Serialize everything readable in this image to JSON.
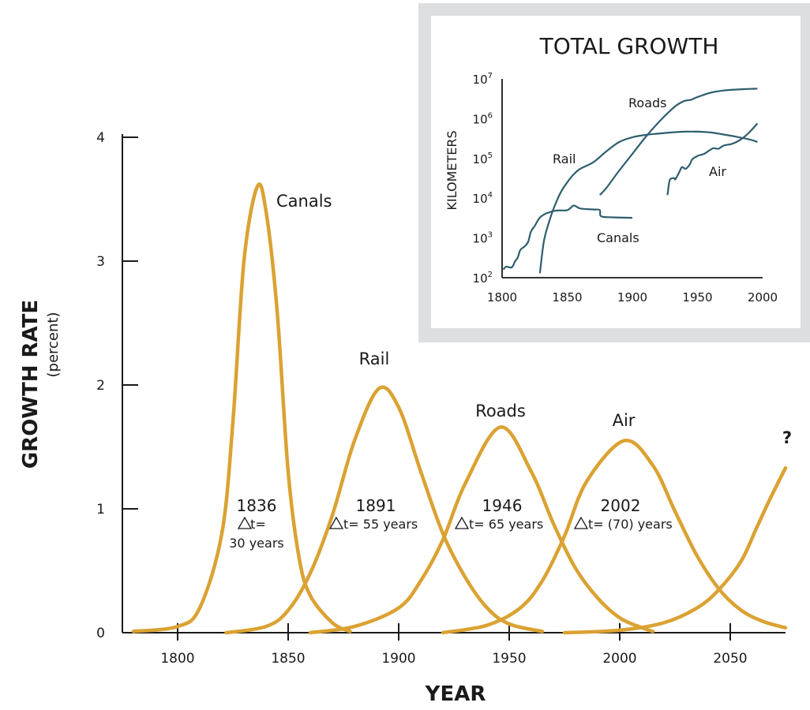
{
  "colors": {
    "curve": "#DBA232",
    "inset_line": "#2F5E6E",
    "inset_frame": "#DDDEE0",
    "axis": "#1a1a1a"
  },
  "chart_data": [
    {
      "type": "line",
      "xlabel": "YEAR",
      "ylabel": "GROWTH RATE",
      "ylabel_sub": "(percent)",
      "xlim": [
        1775,
        2075
      ],
      "ylim": [
        0,
        4
      ],
      "x_ticks": [
        "1800",
        "1850",
        "1900",
        "1950",
        "2000",
        "2050"
      ],
      "y_ticks": [
        "0",
        "1",
        "2",
        "3",
        "4"
      ],
      "grid": false,
      "series": [
        {
          "name": "Canals",
          "peak_year": "1836",
          "peak_value": 3.6,
          "delta_prefix": "t=",
          "delta_years": "30 years",
          "x": [
            1780,
            1800,
            1810,
            1820,
            1825,
            1830,
            1836,
            1840,
            1845,
            1850,
            1855,
            1860,
            1870,
            1878
          ],
          "y": [
            0.01,
            0.05,
            0.2,
            0.8,
            1.7,
            3.0,
            3.6,
            3.4,
            2.6,
            1.3,
            0.6,
            0.3,
            0.08,
            0.01
          ]
        },
        {
          "name": "Rail",
          "peak_year": "1891",
          "peak_value": 1.97,
          "delta_prefix": "t=",
          "delta_years": "55 years",
          "x": [
            1822,
            1840,
            1850,
            1860,
            1870,
            1880,
            1891,
            1900,
            1910,
            1920,
            1930,
            1940,
            1950,
            1965
          ],
          "y": [
            0.0,
            0.05,
            0.18,
            0.48,
            0.95,
            1.55,
            1.97,
            1.82,
            1.3,
            0.8,
            0.45,
            0.2,
            0.07,
            0.01
          ]
        },
        {
          "name": "Roads",
          "peak_year": "1946",
          "peak_value": 1.66,
          "delta_prefix": "t=",
          "delta_years": "65 years",
          "x": [
            1860,
            1880,
            1900,
            1910,
            1920,
            1930,
            1946,
            1960,
            1970,
            1980,
            1990,
            2000,
            2010,
            2015
          ],
          "y": [
            0.0,
            0.05,
            0.2,
            0.42,
            0.75,
            1.2,
            1.66,
            1.3,
            0.88,
            0.52,
            0.28,
            0.12,
            0.04,
            0.01
          ]
        },
        {
          "name": "Air",
          "peak_year": "2002",
          "peak_value": 1.55,
          "delta_prefix": "t=",
          "delta_years": "(70) years",
          "x": [
            1920,
            1940,
            1955,
            1965,
            1975,
            1985,
            2002,
            2015,
            2025,
            2035,
            2045,
            2055,
            2065,
            2075
          ],
          "y": [
            0.0,
            0.06,
            0.2,
            0.42,
            0.78,
            1.22,
            1.55,
            1.35,
            0.98,
            0.62,
            0.35,
            0.18,
            0.09,
            0.04
          ]
        },
        {
          "name": "?",
          "x": [
            1975,
            2000,
            2020,
            2035,
            2045,
            2055,
            2062,
            2068,
            2075
          ],
          "y": [
            0.0,
            0.02,
            0.08,
            0.2,
            0.35,
            0.58,
            0.85,
            1.08,
            1.33
          ]
        }
      ]
    },
    {
      "type": "line",
      "title": "TOTAL GROWTH",
      "ylabel": "KILOMETERS",
      "y_scale": "log",
      "xlim": [
        1800,
        2000
      ],
      "ylim": [
        100,
        10000000
      ],
      "x_ticks": [
        "1800",
        "1850",
        "1900",
        "1950",
        "2000"
      ],
      "y_ticks": [
        {
          "base": "10",
          "exp": "2"
        },
        {
          "base": "10",
          "exp": "3"
        },
        {
          "base": "10",
          "exp": "4"
        },
        {
          "base": "10",
          "exp": "5"
        },
        {
          "base": "10",
          "exp": "6"
        },
        {
          "base": "10",
          "exp": "7"
        }
      ],
      "series": [
        {
          "name": "Canals",
          "x": [
            1801,
            1803,
            1806,
            1808,
            1810,
            1812,
            1814,
            1817,
            1820,
            1822,
            1825,
            1830,
            1840,
            1850,
            1855,
            1860,
            1870,
            1875,
            1876,
            1885,
            1900
          ],
          "y": [
            160,
            190,
            180,
            190,
            260,
            320,
            500,
            600,
            800,
            1400,
            2000,
            3500,
            4800,
            5000,
            6500,
            5500,
            5200,
            5000,
            3500,
            3300,
            3200
          ]
        },
        {
          "name": "Rail",
          "x": [
            1829,
            1832,
            1836,
            1840,
            1845,
            1850,
            1855,
            1860,
            1870,
            1880,
            1890,
            1900,
            1910,
            1920,
            1930,
            1940,
            1950,
            1960,
            1970,
            1980,
            1990,
            1996
          ],
          "y": [
            130,
            800,
            2500,
            6000,
            14000,
            25000,
            40000,
            55000,
            80000,
            150000,
            260000,
            340000,
            390000,
            420000,
            450000,
            470000,
            470000,
            450000,
            400000,
            350000,
            300000,
            260000
          ]
        },
        {
          "name": "Roads",
          "x": [
            1875,
            1880,
            1890,
            1900,
            1910,
            1920,
            1930,
            1935,
            1940,
            1945,
            1950,
            1960,
            1970,
            1980,
            1990,
            1996
          ],
          "y": [
            12000,
            18000,
            50000,
            130000,
            340000,
            800000,
            1700000,
            2300000,
            2800000,
            3000000,
            3500000,
            4500000,
            5100000,
            5400000,
            5600000,
            5700000
          ]
        },
        {
          "name": "Air",
          "x": [
            1927,
            1928,
            1929,
            1932,
            1933,
            1936,
            1938,
            1941,
            1944,
            1946,
            1950,
            1955,
            1958,
            1962,
            1966,
            1970,
            1976,
            1980,
            1985,
            1990,
            1996
          ],
          "y": [
            12000,
            22000,
            30000,
            32000,
            30000,
            45000,
            60000,
            55000,
            70000,
            95000,
            115000,
            130000,
            150000,
            180000,
            175000,
            210000,
            230000,
            260000,
            330000,
            460000,
            760000
          ]
        }
      ]
    }
  ]
}
